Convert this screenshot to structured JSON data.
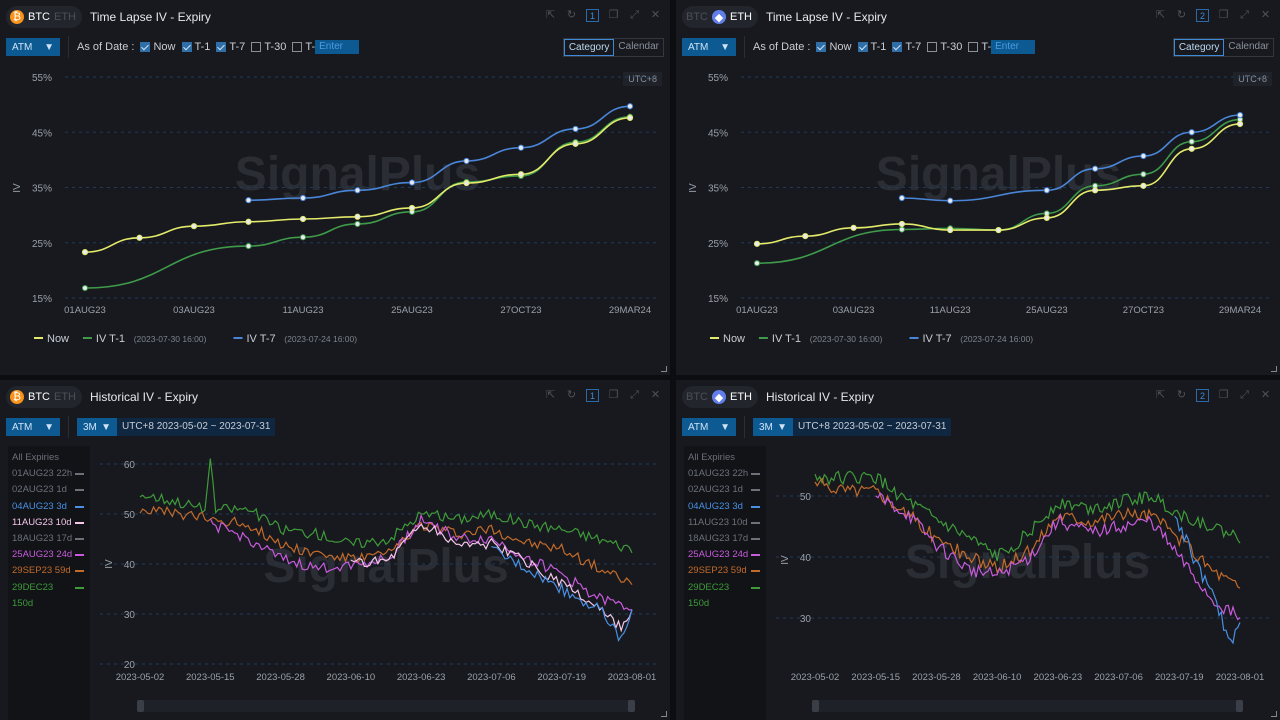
{
  "panels": [
    {
      "id": "tl",
      "coin_active": "BTC",
      "coin_inactive": "ETH",
      "coin_icon_color": "#f7931a",
      "title": "Time Lapse IV - Expiry",
      "window_num": "1",
      "atm": "ATM",
      "as_of": "As of Date :",
      "checks": [
        {
          "label": "Now",
          "checked": true
        },
        {
          "label": "T-1",
          "checked": true
        },
        {
          "label": "T-7",
          "checked": true
        },
        {
          "label": "T-30",
          "checked": false
        },
        {
          "label": "T-",
          "checked": false
        }
      ],
      "enter_placeholder": "Enter",
      "mode": [
        "Category",
        "Calendar"
      ],
      "utc": "UTC+8"
    },
    {
      "id": "tr",
      "coin_active": "ETH",
      "coin_inactive": "BTC",
      "coin_icon_color": "#627eea",
      "title": "Time Lapse IV - Expiry",
      "window_num": "2",
      "atm": "ATM",
      "as_of": "As of Date :",
      "checks": [
        {
          "label": "Now",
          "checked": true
        },
        {
          "label": "T-1",
          "checked": true
        },
        {
          "label": "T-7",
          "checked": true
        },
        {
          "label": "T-30",
          "checked": false
        },
        {
          "label": "T-",
          "checked": false
        }
      ],
      "enter_placeholder": "Enter",
      "mode": [
        "Category",
        "Calendar"
      ],
      "utc": "UTC+8"
    },
    {
      "id": "bl",
      "coin_active": "BTC",
      "coin_inactive": "ETH",
      "coin_icon_color": "#f7931a",
      "title": "Historical IV - Expiry",
      "window_num": "1",
      "atm": "ATM",
      "period": "3M",
      "range": "UTC+8 2023-05-02 ~ 2023-07-31",
      "expiries_header": "All Expiries",
      "expiries": [
        {
          "label": "01AUG23 22h",
          "color": "#6b7079",
          "active": false
        },
        {
          "label": "02AUG23 1d",
          "color": "#6b7079",
          "active": false
        },
        {
          "label": "04AUG23 3d",
          "color": "#4a90e2",
          "active": true
        },
        {
          "label": "11AUG23 10d",
          "color": "#f4c6e8",
          "active": true
        },
        {
          "label": "18AUG23 17d",
          "color": "#6b7079",
          "active": false
        },
        {
          "label": "25AUG23 24d",
          "color": "#c75bdc",
          "active": true
        },
        {
          "label": "29SEP23 59d",
          "color": "#c26a2a",
          "active": true
        },
        {
          "label": "29DEC23 150d",
          "color": "#3f9a3a",
          "active": true
        }
      ]
    },
    {
      "id": "br",
      "coin_active": "ETH",
      "coin_inactive": "BTC",
      "coin_icon_color": "#627eea",
      "title": "Historical IV - Expiry",
      "window_num": "2",
      "atm": "ATM",
      "period": "3M",
      "range": "UTC+8 2023-05-02 ~ 2023-07-31",
      "expiries_header": "All Expiries",
      "expiries": [
        {
          "label": "01AUG23 22h",
          "color": "#6b7079",
          "active": false
        },
        {
          "label": "02AUG23 1d",
          "color": "#6b7079",
          "active": false
        },
        {
          "label": "04AUG23 3d",
          "color": "#4a90e2",
          "active": true
        },
        {
          "label": "11AUG23 10d",
          "color": "#6b7079",
          "active": false
        },
        {
          "label": "18AUG23 17d",
          "color": "#6b7079",
          "active": false
        },
        {
          "label": "25AUG23 24d",
          "color": "#c75bdc",
          "active": true
        },
        {
          "label": "29SEP23 59d",
          "color": "#c26a2a",
          "active": true
        },
        {
          "label": "29DEC23 150d",
          "color": "#3f9a3a",
          "active": true
        }
      ]
    }
  ],
  "watermark": "SignalPlus",
  "chart_data": [
    {
      "type": "line",
      "panel": "tl",
      "ylabel": "IV",
      "y_ticks": [
        "55%",
        "45%",
        "35%",
        "25%",
        "15%"
      ],
      "ylim": [
        15,
        55
      ],
      "categories": [
        "01AUG23",
        "02AUG23",
        "03AUG23",
        "04AUG23",
        "11AUG23",
        "18AUG23",
        "25AUG23",
        "29SEP23",
        "27OCT23",
        "29DEC23",
        "29MAR24"
      ],
      "x_tick_labels": [
        "01AUG23",
        "03AUG23",
        "11AUG23",
        "25AUG23",
        "27OCT23",
        "29MAR24"
      ],
      "legend_position": "bottom-left",
      "series": [
        {
          "name": "Now",
          "legend_note": "",
          "color": "#e4ea6a",
          "values": [
            23.3,
            25.9,
            28.0,
            28.8,
            29.3,
            29.7,
            31.3,
            35.8,
            37.4,
            42.9,
            47.6
          ]
        },
        {
          "name": "IV T-1",
          "legend_note": "(2023-07-30 16:00)",
          "color": "#3f9a4a",
          "values": [
            16.8,
            null,
            null,
            24.4,
            26.0,
            28.4,
            30.6,
            36.0,
            37.1,
            43.2,
            47.8
          ]
        },
        {
          "name": "IV T-7",
          "legend_note": "(2023-07-24 16:00)",
          "color": "#4a86d8",
          "values": [
            null,
            null,
            null,
            32.7,
            33.1,
            34.5,
            35.9,
            39.8,
            42.2,
            45.6,
            49.7
          ]
        }
      ]
    },
    {
      "type": "line",
      "panel": "tr",
      "ylabel": "IV",
      "y_ticks": [
        "55%",
        "45%",
        "35%",
        "25%",
        "15%"
      ],
      "ylim": [
        15,
        55
      ],
      "categories": [
        "01AUG23",
        "02AUG23",
        "03AUG23",
        "04AUG23",
        "11AUG23",
        "18AUG23",
        "25AUG23",
        "29SEP23",
        "27OCT23",
        "29DEC23",
        "29MAR24"
      ],
      "x_tick_labels": [
        "01AUG23",
        "03AUG23",
        "11AUG23",
        "25AUG23",
        "27OCT23",
        "29MAR24"
      ],
      "legend_position": "bottom-left",
      "series": [
        {
          "name": "Now",
          "legend_note": "",
          "color": "#e4ea6a",
          "values": [
            24.8,
            26.2,
            27.7,
            28.4,
            27.3,
            27.3,
            29.5,
            34.5,
            35.3,
            42.0,
            46.5
          ]
        },
        {
          "name": "IV T-1",
          "legend_note": "(2023-07-30 16:00)",
          "color": "#3f9a4a",
          "values": [
            21.3,
            null,
            null,
            27.4,
            27.6,
            27.3,
            30.3,
            35.3,
            37.4,
            43.3,
            47.3
          ]
        },
        {
          "name": "IV T-7",
          "legend_note": "(2023-07-24 16:00)",
          "color": "#4a86d8",
          "values": [
            null,
            null,
            null,
            33.1,
            32.6,
            null,
            34.5,
            38.4,
            40.7,
            45.0,
            48.1
          ]
        }
      ]
    },
    {
      "type": "line",
      "panel": "bl",
      "ylabel": "IV",
      "ylim": [
        20,
        60
      ],
      "y_ticks": [
        60,
        50,
        40,
        30,
        20
      ],
      "x_range": [
        "2023-05-02",
        "2023-08-01"
      ],
      "x_tick_labels": [
        "2023-05-02",
        "2023-05-15",
        "2023-05-28",
        "2023-06-10",
        "2023-06-23",
        "2023-07-06",
        "2023-07-19",
        "2023-08-01"
      ],
      "series": [
        {
          "name": "29DEC23 150d",
          "color": "#3f9a3a",
          "x": [
            "2023-05-02",
            "2023-05-09",
            "2023-05-14",
            "2023-05-15",
            "2023-05-16",
            "2023-05-22",
            "2023-05-28",
            "2023-06-04",
            "2023-06-10",
            "2023-06-17",
            "2023-06-23",
            "2023-06-30",
            "2023-07-06",
            "2023-07-13",
            "2023-07-19",
            "2023-07-26",
            "2023-08-01"
          ],
          "y": [
            54,
            52.5,
            51,
            60,
            51,
            51,
            47,
            46,
            44,
            45,
            50,
            49,
            50,
            48,
            47,
            45,
            43
          ]
        },
        {
          "name": "29SEP23 59d",
          "color": "#c26a2a",
          "x": [
            "2023-05-02",
            "2023-05-09",
            "2023-05-15",
            "2023-05-22",
            "2023-05-28",
            "2023-06-04",
            "2023-06-10",
            "2023-06-17",
            "2023-06-23",
            "2023-06-30",
            "2023-07-06",
            "2023-07-13",
            "2023-07-19",
            "2023-07-26",
            "2023-08-01"
          ],
          "y": [
            51,
            50,
            49,
            48,
            44,
            42,
            41,
            42,
            48,
            46,
            47,
            44,
            43,
            39,
            36
          ]
        },
        {
          "name": "25AUG23 24d",
          "color": "#c75bdc",
          "x": [
            "2023-05-15",
            "2023-05-22",
            "2023-05-28",
            "2023-06-04",
            "2023-06-10",
            "2023-06-17",
            "2023-06-23",
            "2023-06-30",
            "2023-07-06",
            "2023-07-13",
            "2023-07-19",
            "2023-07-26",
            "2023-08-01"
          ],
          "y": [
            48,
            45,
            41,
            39,
            40,
            41,
            49,
            45,
            45,
            41,
            38,
            33,
            31
          ]
        },
        {
          "name": "11AUG23 10d",
          "color": "#f4c6e8",
          "x": [
            "2023-06-10",
            "2023-06-17",
            "2023-06-23",
            "2023-06-30",
            "2023-07-06",
            "2023-07-13",
            "2023-07-19",
            "2023-07-26",
            "2023-07-30",
            "2023-08-01"
          ],
          "y": [
            40,
            41,
            48,
            44,
            44,
            40,
            36,
            31,
            27,
            30
          ]
        },
        {
          "name": "04AUG23 3d",
          "color": "#4a90e2",
          "x": [
            "2023-07-06",
            "2023-07-13",
            "2023-07-19",
            "2023-07-26",
            "2023-07-30",
            "2023-08-01"
          ],
          "y": [
            43,
            39,
            35,
            31,
            25,
            30
          ]
        }
      ]
    },
    {
      "type": "line",
      "panel": "br",
      "ylabel": "IV",
      "ylim": [
        22,
        57
      ],
      "y_ticks": [
        50,
        40,
        30
      ],
      "x_range": [
        "2023-05-02",
        "2023-08-01"
      ],
      "x_tick_labels": [
        "2023-05-02",
        "2023-05-15",
        "2023-05-28",
        "2023-06-10",
        "2023-06-23",
        "2023-07-06",
        "2023-07-19",
        "2023-08-01"
      ],
      "series": [
        {
          "name": "29DEC23 150d",
          "color": "#3f9a3a",
          "x": [
            "2023-05-02",
            "2023-05-09",
            "2023-05-15",
            "2023-05-22",
            "2023-05-28",
            "2023-06-04",
            "2023-06-10",
            "2023-06-17",
            "2023-06-23",
            "2023-06-30",
            "2023-07-06",
            "2023-07-13",
            "2023-07-19",
            "2023-07-26",
            "2023-08-01"
          ],
          "y": [
            53,
            53,
            53,
            49,
            46,
            43,
            40,
            44,
            49,
            48,
            49,
            50,
            47,
            45,
            43
          ]
        },
        {
          "name": "29SEP23 59d",
          "color": "#c26a2a",
          "x": [
            "2023-05-02",
            "2023-05-09",
            "2023-05-15",
            "2023-05-22",
            "2023-05-28",
            "2023-06-04",
            "2023-06-10",
            "2023-06-17",
            "2023-06-23",
            "2023-06-30",
            "2023-07-06",
            "2023-07-13",
            "2023-07-19",
            "2023-07-26",
            "2023-08-01"
          ],
          "y": [
            52,
            51,
            51,
            47,
            43,
            40,
            38,
            41,
            47,
            46,
            47,
            47,
            43,
            38,
            35
          ]
        },
        {
          "name": "25AUG23 24d",
          "color": "#c75bdc",
          "x": [
            "2023-05-15",
            "2023-05-22",
            "2023-05-28",
            "2023-06-04",
            "2023-06-10",
            "2023-06-17",
            "2023-06-23",
            "2023-06-30",
            "2023-07-06",
            "2023-07-13",
            "2023-07-19",
            "2023-07-26",
            "2023-08-01"
          ],
          "y": [
            50,
            47,
            42,
            38,
            37,
            40,
            46,
            44,
            45,
            46,
            40,
            33,
            30
          ]
        },
        {
          "name": "04AUG23 3d",
          "color": "#4a90e2",
          "x": [
            "2023-07-18",
            "2023-07-22",
            "2023-07-26",
            "2023-07-30",
            "2023-08-01"
          ],
          "y": [
            47,
            40,
            34,
            26,
            30
          ]
        }
      ]
    }
  ]
}
